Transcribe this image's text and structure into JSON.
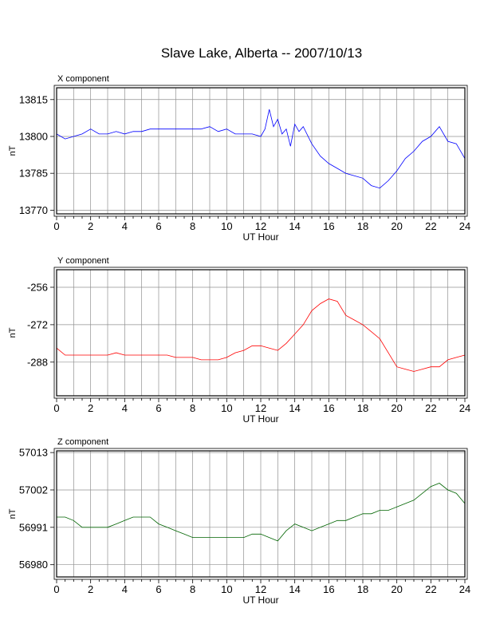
{
  "title": "Slave Lake, Alberta -- 2007/10/13",
  "colors": {
    "x": "#0000ff",
    "y": "#ff0000",
    "z": "#006400",
    "grid": "#909090"
  },
  "chart_data": [
    {
      "type": "line",
      "subtitle": "X component",
      "xlabel": "UT Hour",
      "ylabel": "nT",
      "xlim": [
        0,
        24
      ],
      "ylim": [
        13768.5,
        13819.8
      ],
      "xticks": [
        0,
        2,
        4,
        6,
        8,
        10,
        12,
        14,
        16,
        18,
        20,
        22,
        24
      ],
      "yticks": [
        13770,
        13785,
        13800,
        13815
      ],
      "grid": true,
      "series": [
        {
          "color": "#0000ff",
          "x": [
            0,
            0.5,
            1,
            1.5,
            2,
            2.5,
            3,
            3.5,
            4,
            4.5,
            5,
            5.5,
            6,
            6.5,
            7,
            7.5,
            8,
            8.5,
            9,
            9.5,
            10,
            10.5,
            11,
            11.5,
            12,
            12.25,
            12.5,
            12.75,
            13,
            13.25,
            13.5,
            13.75,
            14,
            14.25,
            14.5,
            15,
            15.5,
            16,
            16.5,
            17,
            17.5,
            18,
            18.5,
            19,
            19.5,
            20,
            20.5,
            21,
            21.5,
            22,
            22.5,
            23,
            23.5,
            24
          ],
          "y": [
            13801,
            13799,
            13800,
            13801,
            13803,
            13801,
            13801,
            13802,
            13801,
            13802,
            13802,
            13803,
            13803,
            13803,
            13803,
            13803,
            13803,
            13803,
            13804,
            13802,
            13803,
            13801,
            13801,
            13801,
            13800,
            13803,
            13811,
            13804,
            13807,
            13801,
            13803,
            13796,
            13805,
            13802,
            13804,
            13797,
            13792,
            13789,
            13787,
            13785,
            13784,
            13783,
            13780,
            13779,
            13782,
            13786,
            13791,
            13794,
            13798,
            13800,
            13804,
            13798,
            13797,
            13791
          ]
        }
      ]
    },
    {
      "type": "line",
      "subtitle": "Y component",
      "xlabel": "UT Hour",
      "ylabel": "nT",
      "xlim": [
        0,
        24
      ],
      "ylim": [
        -302.4,
        -248.5
      ],
      "xticks": [
        0,
        2,
        4,
        6,
        8,
        10,
        12,
        14,
        16,
        18,
        20,
        22,
        24
      ],
      "yticks": [
        -256,
        -272,
        -288
      ],
      "grid": true,
      "series": [
        {
          "color": "#ff0000",
          "x": [
            0,
            0.5,
            1,
            1.5,
            2,
            2.5,
            3,
            3.5,
            4,
            4.5,
            5,
            5.5,
            6,
            6.5,
            7,
            7.5,
            8,
            8.5,
            9,
            9.5,
            10,
            10.5,
            11,
            11.5,
            12,
            12.5,
            13,
            13.5,
            14,
            14.5,
            15,
            15.5,
            16,
            16.5,
            17,
            17.5,
            18,
            18.5,
            19,
            19.5,
            20,
            20.5,
            21,
            21.5,
            22,
            22.5,
            23,
            23.5,
            24
          ],
          "y": [
            -282,
            -285,
            -285,
            -285,
            -285,
            -285,
            -285,
            -284,
            -285,
            -285,
            -285,
            -285,
            -285,
            -285,
            -286,
            -286,
            -286,
            -287,
            -287,
            -287,
            -286,
            -284,
            -283,
            -281,
            -281,
            -282,
            -283,
            -280,
            -276,
            -272,
            -266,
            -263,
            -261,
            -262,
            -268,
            -270,
            -272,
            -275,
            -278,
            -284,
            -290,
            -291,
            -292,
            -291,
            -290,
            -290,
            -287,
            -286,
            -285
          ]
        }
      ]
    },
    {
      "type": "line",
      "subtitle": "Z component",
      "xlabel": "UT Hour",
      "ylabel": "nT",
      "xlim": [
        0,
        24
      ],
      "ylim": [
        56976.4,
        57013.5
      ],
      "xticks": [
        0,
        2,
        4,
        6,
        8,
        10,
        12,
        14,
        16,
        18,
        20,
        22,
        24
      ],
      "yticks": [
        56980,
        56991,
        57002,
        57013
      ],
      "grid": true,
      "series": [
        {
          "color": "#006400",
          "x": [
            0,
            0.5,
            1,
            1.5,
            2,
            2.5,
            3,
            3.5,
            4,
            4.5,
            5,
            5.5,
            6,
            6.5,
            7,
            7.5,
            8,
            8.5,
            9,
            9.5,
            10,
            10.5,
            11,
            11.5,
            12,
            12.5,
            13,
            13.5,
            14,
            14.5,
            15,
            15.5,
            16,
            16.5,
            17,
            17.5,
            18,
            18.5,
            19,
            19.5,
            20,
            20.5,
            21,
            21.5,
            22,
            22.5,
            23,
            23.5,
            24
          ],
          "y": [
            56994,
            56994,
            56993,
            56991,
            56991,
            56991,
            56991,
            56992,
            56993,
            56994,
            56994,
            56994,
            56992,
            56991,
            56990,
            56989,
            56988,
            56988,
            56988,
            56988,
            56988,
            56988,
            56988,
            56989,
            56989,
            56988,
            56987,
            56990,
            56992,
            56991,
            56990,
            56991,
            56992,
            56993,
            56993,
            56994,
            56995,
            56995,
            56996,
            56996,
            56997,
            56998,
            56999,
            57001,
            57003,
            57004,
            57002,
            57001,
            56998
          ]
        }
      ]
    }
  ]
}
